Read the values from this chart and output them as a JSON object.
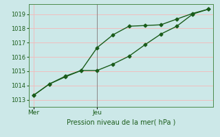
{
  "background_color": "#cce8e8",
  "grid_color": "#f5b8b8",
  "line_color": "#1a5c1a",
  "title": "Pression niveau de la mer( hPa )",
  "x_ticks_labels": [
    "Mer",
    "Jeu"
  ],
  "x_ticks_pos": [
    0,
    4
  ],
  "ylim": [
    1012.5,
    1019.7
  ],
  "yticks": [
    1013,
    1014,
    1015,
    1016,
    1017,
    1018,
    1019
  ],
  "series1_x": [
    0,
    1,
    2,
    3,
    4,
    5,
    6,
    7,
    8,
    9,
    10,
    11
  ],
  "series1_y": [
    1013.3,
    1014.1,
    1014.6,
    1015.05,
    1016.65,
    1017.55,
    1018.15,
    1018.2,
    1018.25,
    1018.65,
    1019.05,
    1019.35
  ],
  "series2_x": [
    0,
    1,
    2,
    3,
    4,
    5,
    6,
    7,
    8,
    9,
    10,
    11
  ],
  "series2_y": [
    1013.3,
    1014.1,
    1014.65,
    1015.05,
    1015.05,
    1015.5,
    1016.05,
    1016.85,
    1017.6,
    1018.15,
    1019.0,
    1019.35
  ],
  "vline_x": [
    4
  ],
  "marker_size": 2.5,
  "linewidth": 1.0,
  "vline_color": "#888888",
  "spine_color": "#4a8a4a",
  "tick_color": "#1a5c1a",
  "xlabel_fontsize": 7,
  "ytick_fontsize": 6,
  "xtick_fontsize": 6.5
}
